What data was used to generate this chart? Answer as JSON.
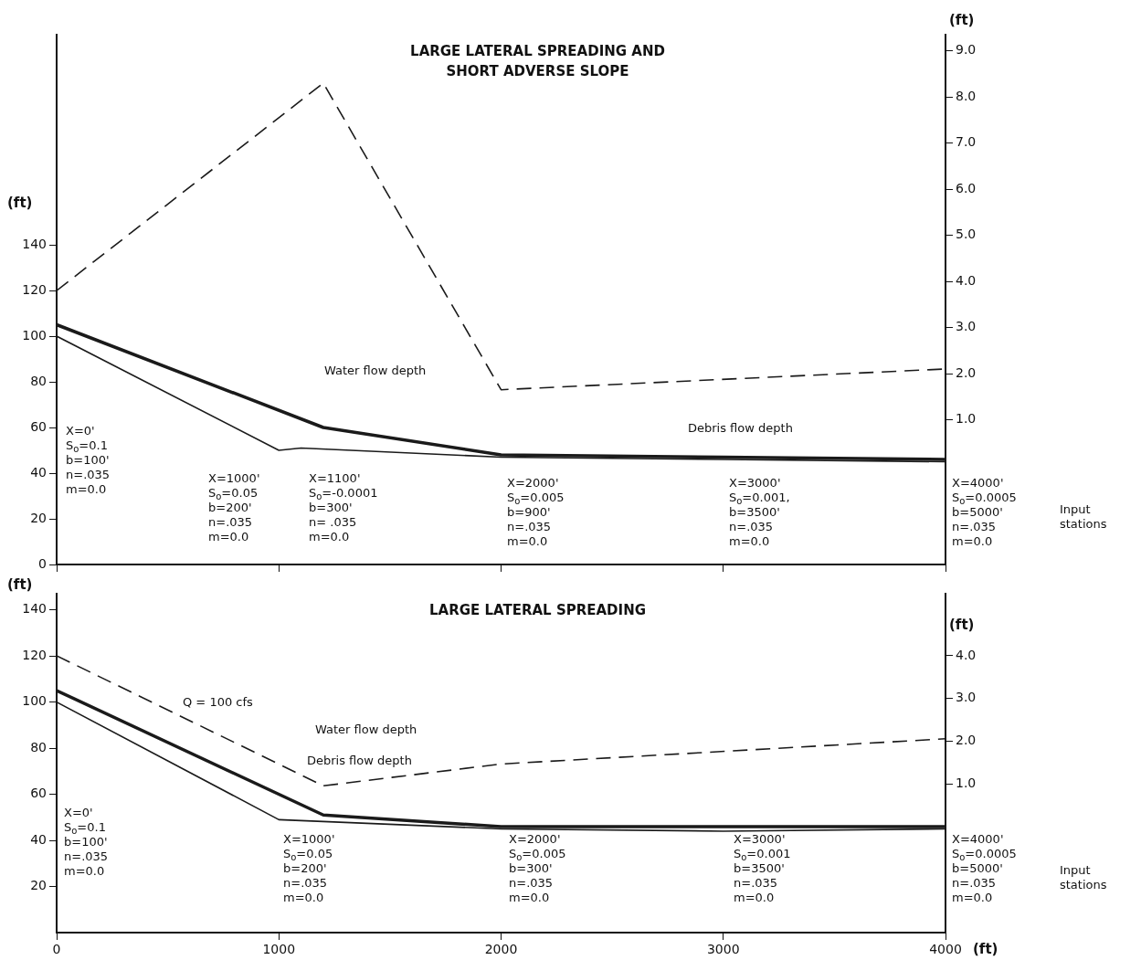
{
  "chart_data": [
    {
      "type": "line",
      "title": "LARGE LATERAL SPREADING AND\nSHORT ADVERSE SLOPE",
      "ylabel": "(ft)",
      "y2label": "(ft)",
      "series": [
        {
          "color": "#1a1a1a",
          "x": [
            0,
            1000,
            1100,
            2000,
            3000,
            4000
          ],
          "values": [
            100,
            50,
            51,
            47,
            46,
            45
          ]
        },
        {
          "color": "#1a1a1a",
          "x": [
            0,
            1200,
            2000,
            3000,
            4000
          ],
          "values": [
            105,
            60,
            48,
            47,
            46
          ]
        },
        {
          "color": "#1a1a1a",
          "axis": "y2",
          "line_style": "dashed",
          "x": [
            0,
            1200,
            2000,
            4000
          ],
          "values": [
            3.8,
            8.3,
            1.65,
            2.1
          ]
        }
      ],
      "xlim": [
        0,
        4000
      ],
      "xticks": [
        0,
        1000,
        2000,
        3000,
        4000
      ],
      "ylim": [
        0,
        232
      ],
      "yticks": [
        0,
        20,
        40,
        60,
        80,
        100,
        120,
        140
      ],
      "y2lim": [
        -2.14,
        9.35
      ],
      "y2ticks": [
        {
          "value": 1,
          "label": "1.0"
        },
        {
          "value": 2,
          "label": "2.0"
        },
        {
          "value": 3,
          "label": "3.0"
        },
        {
          "value": 4,
          "label": "4.0"
        },
        {
          "value": 5,
          "label": "5.0"
        },
        {
          "value": 6,
          "label": "6.0"
        },
        {
          "value": 7,
          "label": "7.0"
        },
        {
          "value": 8,
          "label": "8.0"
        },
        {
          "value": 9,
          "label": "9.0"
        }
      ],
      "tick_labels": "y",
      "annotations": [
        "Water flow depth",
        "Debris flow depth",
        "X=0'\nS$_{o}$=0.1\nb=100'\nn=.035\nm=0.0",
        "X=1000'\nS$_{o}$=0.05\nb=200'\nn=.035\nm=0.0",
        "X=1100'\nS$_{o}$=-0.0001\nb=300'\nn= .035\nm=0.0",
        "X=2000'\nS$_{o}$=0.005\nb=900'\nn=.035\nm=0.0",
        "X=3000'\nS$_{o}$=0.001,\nb=3500'\nn=.035\nm=0.0",
        "X=4000'\nS$_{o}$=0.0005\nb=5000'\nn=.035\nm=0.0",
        "Input stations"
      ]
    },
    {
      "type": "line",
      "title": "LARGE LATERAL SPREADING",
      "xlabel": "(ft)",
      "ylabel": "(ft)",
      "y2label": "(ft)",
      "series": [
        {
          "color": "#1a1a1a",
          "x": [
            0,
            1000,
            2000,
            3000,
            4000
          ],
          "values": [
            100,
            49,
            45,
            44,
            45
          ]
        },
        {
          "color": "#1a1a1a",
          "x": [
            0,
            1200,
            2000,
            4000
          ],
          "values": [
            105,
            51,
            46,
            46
          ]
        },
        {
          "color": "#1a1a1a",
          "axis": "y2",
          "line_style": "dashed",
          "x": [
            0,
            1200,
            2000,
            4000
          ],
          "values": [
            4.0,
            0.96,
            1.47,
            2.06
          ]
        }
      ],
      "xlim": [
        0,
        4000
      ],
      "xticks": [
        0,
        1000,
        2000,
        3000,
        4000
      ],
      "ylim": [
        0,
        147
      ],
      "yticks": [
        20,
        40,
        60,
        80,
        100,
        120,
        140
      ],
      "y2lim": [
        -2.47,
        5.45
      ],
      "y2ticks": [
        {
          "value": 1,
          "label": "1.0"
        },
        {
          "value": 2,
          "label": "2.0"
        },
        {
          "value": 3,
          "label": "3.0"
        },
        {
          "value": 4,
          "label": "4.0"
        }
      ],
      "annotations": [
        "Q = 100 cfs",
        "Water flow depth",
        "Debris flow depth",
        "X=0'\nS$_{o}$=0.1\nb=100'\nn=.035\nm=0.0",
        "X=1000'\nS$_{o}$=0.05\nb=200'\nn=.035\nm=0.0",
        "X=2000'\nS$_{o}$=0.005\nb=300'\nn=.035\nm=0.0",
        "X=3000'\nS$_{o}$=0.001\nb=3500'\nn=.035\nm=0.0",
        "X=4000'\nS$_{o}$=0.0005\nb=5000'\nn=.035\nm=0.0",
        "Input stations"
      ]
    }
  ]
}
